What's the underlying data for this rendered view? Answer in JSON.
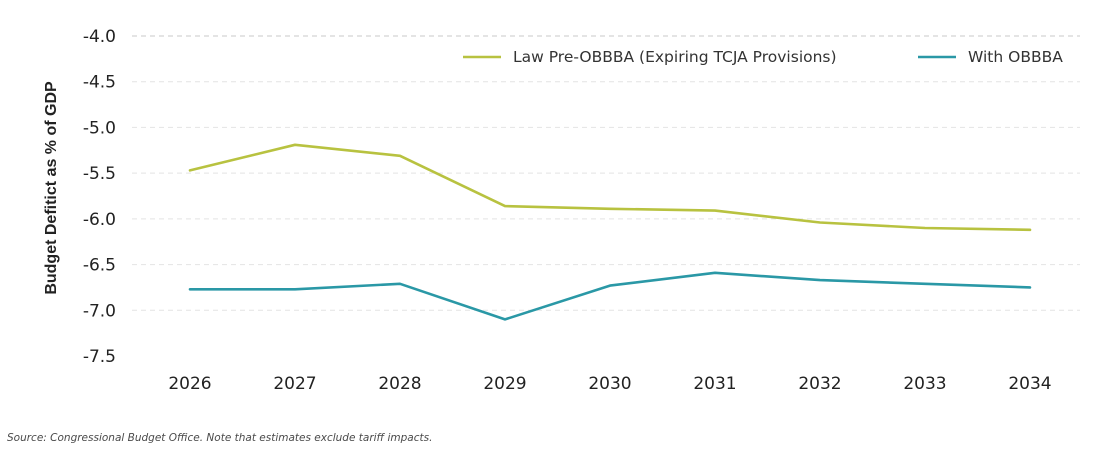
{
  "chart_data": {
    "type": "line",
    "x": [
      "2026",
      "2027",
      "2028",
      "2029",
      "2030",
      "2031",
      "2032",
      "2033",
      "2034"
    ],
    "series": [
      {
        "name": "Law Pre-OBBBA (Expiring TCJA Provisions)",
        "color": "#b8c240",
        "values": [
          -5.47,
          -5.19,
          -5.31,
          -5.86,
          -5.89,
          -5.91,
          -6.04,
          -6.1,
          -6.12
        ]
      },
      {
        "name": "With OBBBA",
        "color": "#2a98a6",
        "values": [
          -6.77,
          -6.77,
          -6.71,
          -7.1,
          -6.73,
          -6.59,
          -6.67,
          -6.71,
          -6.75
        ]
      }
    ],
    "yticks": [
      "-4.0",
      "-4.5",
      "-5.0",
      "-5.5",
      "-6.0",
      "-6.5",
      "-7.0",
      "-7.5"
    ],
    "ylim": [
      -7.5,
      -4.0
    ],
    "title": "",
    "xlabel": "",
    "ylabel": "Budget Defitict as % of GDP",
    "grid": true,
    "legend": "top-right"
  },
  "source": "Source: Congressional Budget Office. Note that estimates exclude tariff impacts."
}
